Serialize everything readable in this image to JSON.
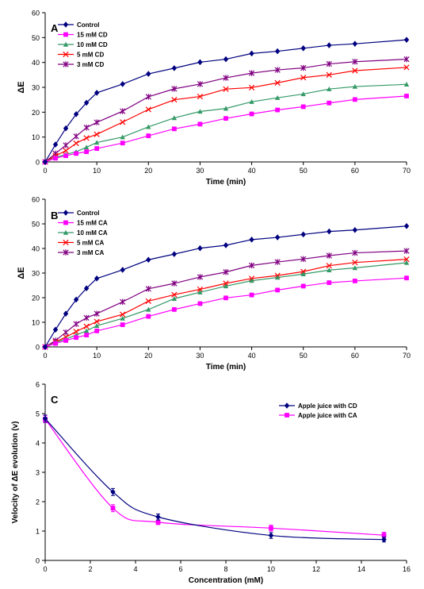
{
  "chart_data": [
    {
      "type": "line",
      "panel_label": "A",
      "xlabel": "Time (min)",
      "ylabel": "ΔE",
      "xlim": [
        0,
        70
      ],
      "ylim": [
        0,
        60
      ],
      "xticks": [
        0,
        10,
        20,
        30,
        40,
        50,
        60,
        70
      ],
      "yticks": [
        0,
        10,
        20,
        30,
        40,
        50,
        60
      ],
      "legend_position": "top-left",
      "x": [
        0,
        2,
        4,
        6,
        8,
        10,
        15,
        20,
        25,
        30,
        35,
        40,
        45,
        50,
        55,
        60,
        70
      ],
      "series": [
        {
          "name": "Control",
          "color": "#000080",
          "marker": "diamond",
          "values": [
            0,
            7,
            13.5,
            19.2,
            23.8,
            27.8,
            31.3,
            35.4,
            37.7,
            40.1,
            41.3,
            43.6,
            44.5,
            45.7,
            46.9,
            47.5,
            49.1
          ]
        },
        {
          "name": "15 mM CD",
          "color": "#ff00ff",
          "marker": "square",
          "values": [
            0,
            1.5,
            2.5,
            3.4,
            4.1,
            5.4,
            7.6,
            10.5,
            13.3,
            15.2,
            17.5,
            19.3,
            20.9,
            22.2,
            23.7,
            25.1,
            26.5
          ]
        },
        {
          "name": "10 mM CD",
          "color": "#339966",
          "marker": "triangle",
          "values": [
            0,
            1.8,
            3,
            4.1,
            5.9,
            7.8,
            10,
            14.1,
            17.7,
            20.3,
            21.5,
            24.2,
            25.8,
            27.3,
            29.3,
            30.3,
            31.2
          ]
        },
        {
          "name": "5 mM CD",
          "color": "#ff0000",
          "marker": "x",
          "values": [
            0,
            2.5,
            4.5,
            7.5,
            9.6,
            11.1,
            16,
            21.1,
            25,
            26.3,
            29.3,
            29.9,
            31.8,
            33.9,
            35,
            36.7,
            38
          ]
        },
        {
          "name": "3 mM CD",
          "color": "#800080",
          "marker": "star",
          "values": [
            0,
            3.4,
            6.7,
            10.3,
            13.8,
            15.9,
            20.4,
            26.2,
            29.4,
            31.3,
            33.8,
            35.7,
            37,
            37.8,
            39.4,
            40.3,
            41.3
          ]
        }
      ]
    },
    {
      "type": "line",
      "panel_label": "B",
      "xlabel": "Time (min)",
      "ylabel": "ΔE",
      "xlim": [
        0,
        70
      ],
      "ylim": [
        0,
        60
      ],
      "xticks": [
        0,
        10,
        20,
        30,
        40,
        50,
        60,
        70
      ],
      "yticks": [
        0,
        10,
        20,
        30,
        40,
        50,
        60
      ],
      "legend_position": "top-left",
      "x": [
        0,
        2,
        4,
        6,
        8,
        10,
        15,
        20,
        25,
        30,
        35,
        40,
        45,
        50,
        55,
        60,
        70
      ],
      "series": [
        {
          "name": "Control",
          "color": "#000080",
          "marker": "diamond",
          "values": [
            0,
            7,
            13.5,
            19.2,
            23.8,
            27.8,
            31.3,
            35.4,
            37.7,
            40.1,
            41.3,
            43.6,
            44.5,
            45.7,
            46.9,
            47.5,
            49.1
          ]
        },
        {
          "name": "15 mM CA",
          "color": "#ff00ff",
          "marker": "square",
          "values": [
            0,
            1.4,
            2.6,
            3.8,
            4.8,
            6.5,
            9,
            12.4,
            15.2,
            17.6,
            19.9,
            21.1,
            23.1,
            24.7,
            26.1,
            26.8,
            28
          ]
        },
        {
          "name": "10 mM CA",
          "color": "#339966",
          "marker": "triangle",
          "values": [
            0,
            1.8,
            3.2,
            4.8,
            6.5,
            8.6,
            11.6,
            15.2,
            19.6,
            22.2,
            24.7,
            26.9,
            28.2,
            29.6,
            31.2,
            32.1,
            34.2
          ]
        },
        {
          "name": "5 mM CA",
          "color": "#ff0000",
          "marker": "x",
          "values": [
            0,
            2,
            4,
            6.2,
            8.3,
            10.3,
            13.2,
            18.6,
            21.2,
            23.4,
            25.8,
            27.8,
            29,
            30.6,
            33,
            34.3,
            35.6
          ]
        },
        {
          "name": "3 mM CA",
          "color": "#800080",
          "marker": "star",
          "values": [
            0,
            2.6,
            5.9,
            9.3,
            11.8,
            13.5,
            18.3,
            23.6,
            25.8,
            28.4,
            30.4,
            33.1,
            34.5,
            35.7,
            37.1,
            38.2,
            39
          ]
        }
      ]
    },
    {
      "type": "line",
      "panel_label": "C",
      "xlabel": "Concentration (mM)",
      "ylabel": "Velocity of ΔE evolution (v)",
      "xlim": [
        0,
        16
      ],
      "ylim": [
        0,
        6
      ],
      "xticks": [
        0,
        2,
        4,
        6,
        8,
        10,
        12,
        14,
        16
      ],
      "yticks": [
        0,
        1,
        2,
        3,
        4,
        5,
        6
      ],
      "legend_position": "top-right",
      "x": [
        0,
        3,
        5,
        10,
        15
      ],
      "series": [
        {
          "name": "Apple juice with CD",
          "color": "#000080",
          "marker": "diamond",
          "values": [
            4.83,
            2.33,
            1.48,
            0.85,
            0.71
          ],
          "errors": [
            0.12,
            0.12,
            0.1,
            0.1,
            0.08
          ]
        },
        {
          "name": "Apple juice with CA",
          "color": "#ff00ff",
          "marker": "square",
          "values": [
            4.81,
            1.78,
            1.3,
            1.1,
            0.86
          ],
          "errors": [
            0.12,
            0.12,
            0.08,
            0.1,
            0.1
          ]
        }
      ]
    }
  ]
}
